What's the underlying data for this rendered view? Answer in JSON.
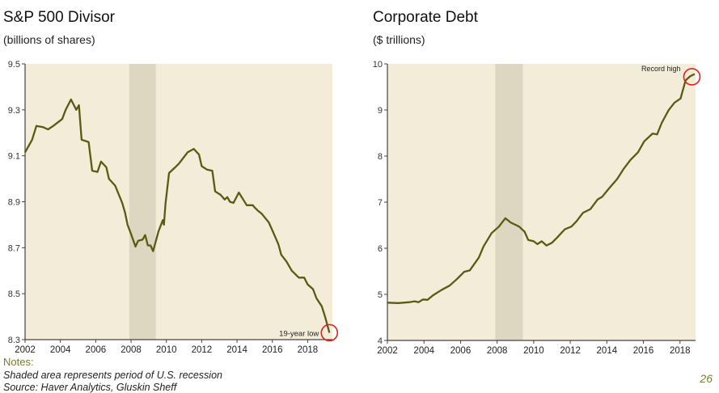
{
  "page_number": "26",
  "notes": {
    "heading": "Notes:",
    "lines": [
      "Shaded area represents period of U.S. recession",
      "Source: Haver Analytics, Gluskin Sheff"
    ]
  },
  "colors": {
    "plot_bg": "#f3ecd9",
    "recession": "#ddd6c1",
    "line": "#5c5a12",
    "highlight": "#e0201c"
  },
  "chart_data": [
    {
      "type": "line",
      "title": "S&P 500 Divisor",
      "subtitle": "(billions of shares)",
      "xlim": [
        2002,
        2019.4
      ],
      "ylim": [
        8.3,
        9.5
      ],
      "xticks": [
        "2002",
        "2004",
        "2006",
        "2008",
        "2010",
        "2012",
        "2014",
        "2016",
        "2018"
      ],
      "yticks": [
        "8.3",
        "8.5",
        "8.7",
        "8.9",
        "9.1",
        "9.3",
        "9.5"
      ],
      "recession": [
        2007.9,
        2009.4
      ],
      "annotation": {
        "text": "19-year low",
        "x": 2019.23,
        "y": 8.33
      },
      "series": [
        {
          "name": "S&P 500 Divisor",
          "points": [
            [
              2002.0,
              9.115
            ],
            [
              2002.4,
              9.17
            ],
            [
              2002.64,
              9.23
            ],
            [
              2003.0,
              9.225
            ],
            [
              2003.3,
              9.215
            ],
            [
              2003.6,
              9.23
            ],
            [
              2004.1,
              9.26
            ],
            [
              2004.3,
              9.3
            ],
            [
              2004.6,
              9.345
            ],
            [
              2004.9,
              9.3
            ],
            [
              2005.05,
              9.32
            ],
            [
              2005.2,
              9.17
            ],
            [
              2005.6,
              9.16
            ],
            [
              2005.8,
              9.035
            ],
            [
              2006.1,
              9.03
            ],
            [
              2006.3,
              9.075
            ],
            [
              2006.6,
              9.05
            ],
            [
              2006.75,
              9.0
            ],
            [
              2007.1,
              8.97
            ],
            [
              2007.5,
              8.895
            ],
            [
              2007.66,
              8.853
            ],
            [
              2007.8,
              8.8
            ],
            [
              2008.0,
              8.76
            ],
            [
              2008.25,
              8.705
            ],
            [
              2008.4,
              8.73
            ],
            [
              2008.65,
              8.735
            ],
            [
              2008.8,
              8.755
            ],
            [
              2008.95,
              8.71
            ],
            [
              2009.1,
              8.71
            ],
            [
              2009.25,
              8.685
            ],
            [
              2009.55,
              8.77
            ],
            [
              2009.8,
              8.82
            ],
            [
              2009.86,
              8.8
            ],
            [
              2009.95,
              8.89
            ],
            [
              2010.15,
              9.025
            ],
            [
              2010.5,
              9.05
            ],
            [
              2010.7,
              9.065
            ],
            [
              2010.95,
              9.09
            ],
            [
              2011.2,
              9.115
            ],
            [
              2011.55,
              9.13
            ],
            [
              2011.85,
              9.105
            ],
            [
              2012.0,
              9.055
            ],
            [
              2012.3,
              9.04
            ],
            [
              2012.6,
              9.035
            ],
            [
              2012.76,
              8.945
            ],
            [
              2013.07,
              8.93
            ],
            [
              2013.3,
              8.91
            ],
            [
              2013.45,
              8.92
            ],
            [
              2013.6,
              8.9
            ],
            [
              2013.8,
              8.895
            ],
            [
              2014.1,
              8.94
            ],
            [
              2014.35,
              8.91
            ],
            [
              2014.55,
              8.885
            ],
            [
              2014.9,
              8.885
            ],
            [
              2014.97,
              8.877
            ],
            [
              2015.2,
              8.86
            ],
            [
              2015.4,
              8.848
            ],
            [
              2015.8,
              8.81
            ],
            [
              2016.03,
              8.77
            ],
            [
              2016.34,
              8.715
            ],
            [
              2016.5,
              8.67
            ],
            [
              2016.8,
              8.64
            ],
            [
              2017.1,
              8.6
            ],
            [
              2017.5,
              8.57
            ],
            [
              2017.8,
              8.57
            ],
            [
              2018.0,
              8.54
            ],
            [
              2018.3,
              8.52
            ],
            [
              2018.5,
              8.48
            ],
            [
              2018.8,
              8.445
            ],
            [
              2019.0,
              8.395
            ],
            [
              2019.23,
              8.33
            ]
          ]
        }
      ]
    },
    {
      "type": "line",
      "title": "Corporate Debt",
      "subtitle": "($ trillions)",
      "xlim": [
        2002,
        2018.85
      ],
      "ylim": [
        4,
        10
      ],
      "xticks": [
        "2002",
        "2004",
        "2006",
        "2008",
        "2010",
        "2012",
        "2014",
        "2016",
        "2018"
      ],
      "yticks": [
        "4",
        "5",
        "6",
        "7",
        "8",
        "9",
        "10"
      ],
      "recession": [
        2007.9,
        2009.4
      ],
      "annotation": {
        "text": "Record high",
        "x": 2018.65,
        "y": 9.72
      },
      "series": [
        {
          "name": "Corporate Debt",
          "points": [
            [
              2002.0,
              4.82
            ],
            [
              2002.6,
              4.81
            ],
            [
              2003.2,
              4.83
            ],
            [
              2003.5,
              4.85
            ],
            [
              2003.7,
              4.83
            ],
            [
              2003.95,
              4.89
            ],
            [
              2004.2,
              4.88
            ],
            [
              2004.5,
              4.98
            ],
            [
              2004.98,
              5.1
            ],
            [
              2005.4,
              5.19
            ],
            [
              2005.8,
              5.33
            ],
            [
              2006.2,
              5.49
            ],
            [
              2006.5,
              5.52
            ],
            [
              2007.0,
              5.8
            ],
            [
              2007.26,
              6.04
            ],
            [
              2007.7,
              6.33
            ],
            [
              2008.1,
              6.47
            ],
            [
              2008.45,
              6.65
            ],
            [
              2008.74,
              6.56
            ],
            [
              2009.2,
              6.47
            ],
            [
              2009.5,
              6.36
            ],
            [
              2009.7,
              6.18
            ],
            [
              2010.0,
              6.15
            ],
            [
              2010.2,
              6.09
            ],
            [
              2010.44,
              6.15
            ],
            [
              2010.7,
              6.06
            ],
            [
              2011.0,
              6.12
            ],
            [
              2011.3,
              6.24
            ],
            [
              2011.7,
              6.41
            ],
            [
              2012.06,
              6.47
            ],
            [
              2012.35,
              6.59
            ],
            [
              2012.7,
              6.77
            ],
            [
              2013.1,
              6.85
            ],
            [
              2013.5,
              7.06
            ],
            [
              2013.75,
              7.12
            ],
            [
              2014.1,
              7.29
            ],
            [
              2014.56,
              7.5
            ],
            [
              2014.93,
              7.73
            ],
            [
              2015.3,
              7.92
            ],
            [
              2015.7,
              8.08
            ],
            [
              2016.04,
              8.32
            ],
            [
              2016.5,
              8.49
            ],
            [
              2016.75,
              8.47
            ],
            [
              2017.0,
              8.72
            ],
            [
              2017.37,
              8.99
            ],
            [
              2017.7,
              9.16
            ],
            [
              2018.03,
              9.25
            ],
            [
              2018.3,
              9.64
            ],
            [
              2018.55,
              9.73
            ],
            [
              2018.8,
              9.78
            ]
          ]
        }
      ]
    }
  ]
}
